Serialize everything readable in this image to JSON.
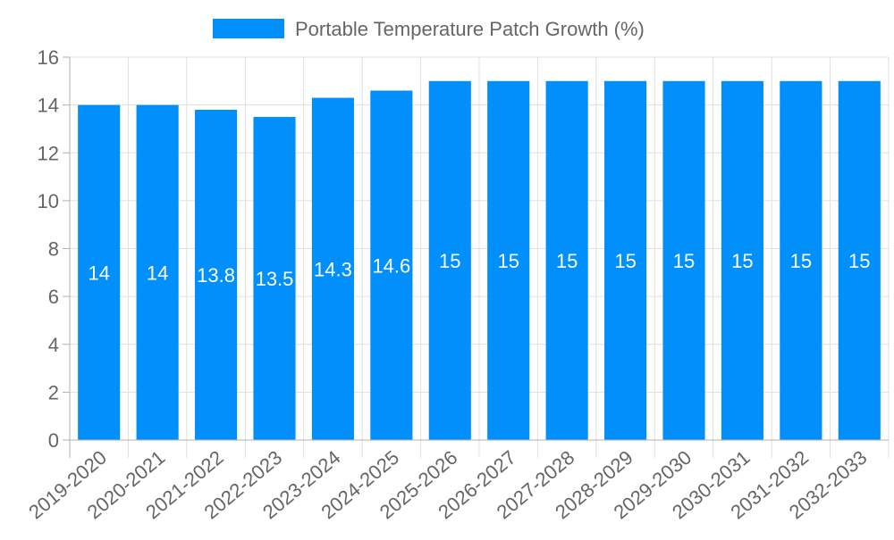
{
  "chart_data": {
    "type": "bar",
    "title": "",
    "legend": {
      "label": "Portable Temperature Patch Growth (%)",
      "placement": "top-center"
    },
    "categories": [
      "2019-2020",
      "2020-2021",
      "2021-2022",
      "2022-2023",
      "2023-2024",
      "2024-2025",
      "2025-2026",
      "2026-2027",
      "2027-2028",
      "2028-2029",
      "2029-2030",
      "2030-2031",
      "2031-2032",
      "2032-2033"
    ],
    "series": [
      {
        "name": "Portable Temperature Patch Growth (%)",
        "values": [
          14,
          14,
          13.8,
          13.5,
          14.3,
          14.6,
          15,
          15,
          15,
          15,
          15,
          15,
          15,
          15
        ]
      }
    ],
    "data_labels": [
      "14",
      "14",
      "13.8",
      "13.5",
      "14.3",
      "14.6",
      "15",
      "15",
      "15",
      "15",
      "15",
      "15",
      "15",
      "15"
    ],
    "yticks": [
      "0",
      "2",
      "4",
      "6",
      "8",
      "10",
      "12",
      "14",
      "16"
    ],
    "ylim": [
      0,
      16
    ],
    "xlabel": "",
    "ylabel": "",
    "grid": true,
    "colors": {
      "bar": "#008ffb",
      "grid": "#e0e0e0",
      "axis": "#b0b0b0",
      "text": "#666666",
      "label": "#ffffff"
    }
  }
}
